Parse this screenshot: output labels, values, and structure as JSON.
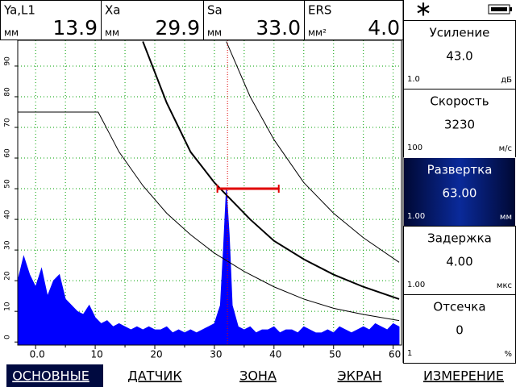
{
  "readouts": [
    {
      "label": "Ya,L1",
      "unit": "мм",
      "value": "13.9"
    },
    {
      "label": "Xa",
      "unit": "мм",
      "value": "29.9"
    },
    {
      "label": "Sa",
      "unit": "мм",
      "value": "33.0"
    },
    {
      "label": "ERS",
      "unit": "мм²",
      "value": "4.0"
    }
  ],
  "params": [
    {
      "name": "Усиление",
      "value": "43.0",
      "min": "1.0",
      "unit": "дБ",
      "selected": false
    },
    {
      "name": "Скорость",
      "value": "3230",
      "min": "100",
      "unit": "м/с",
      "selected": false
    },
    {
      "name": "Развертка",
      "value": "63.00",
      "min": "1.00",
      "unit": "мм",
      "selected": true
    },
    {
      "name": "Задержка",
      "value": "4.00",
      "min": "1.00",
      "unit": "мкс",
      "selected": false
    },
    {
      "name": "Отсечка",
      "value": "0",
      "min": "1",
      "unit": "%",
      "selected": false
    }
  ],
  "tabs": [
    {
      "label": "ОСНОВНЫЕ",
      "selected": true
    },
    {
      "label": "ДАТЧИК",
      "selected": false
    },
    {
      "label": "ЗОНА",
      "selected": false
    },
    {
      "label": "ЭКРАН",
      "selected": false
    },
    {
      "label": "ИЗМЕРЕНИЕ",
      "selected": false
    }
  ],
  "chart_data": {
    "type": "ascan",
    "xlim": [
      -3,
      61.4
    ],
    "ylim": [
      -1,
      98.4
    ],
    "xticks": [
      {
        "value": 0,
        "label": "0.0"
      },
      10,
      20,
      30,
      40,
      50,
      60
    ],
    "x_minor": [
      5,
      15,
      25,
      35,
      45,
      55
    ],
    "yticks": [
      0,
      10,
      20,
      30,
      40,
      50,
      60,
      70,
      80,
      90
    ],
    "grid": true,
    "grid_color": "#00a000",
    "signal": {
      "color": "#0000ff",
      "x": [
        -3,
        -2,
        -1,
        0,
        1,
        2,
        3,
        4,
        5,
        6,
        7,
        8,
        9,
        10,
        11,
        12,
        13,
        14,
        15,
        16,
        17,
        18,
        19,
        20,
        21,
        22,
        23,
        24,
        25,
        26,
        27,
        28,
        29,
        30,
        31,
        31.5,
        32,
        32.5,
        33,
        34,
        35,
        36,
        37,
        38,
        39,
        40,
        41,
        42,
        43,
        44,
        45,
        46,
        47,
        48,
        49,
        50,
        51,
        52,
        53,
        54,
        55,
        56,
        57,
        58,
        59,
        60,
        61
      ],
      "values": [
        20,
        28,
        22,
        18,
        24,
        15,
        20,
        22,
        14,
        12,
        10,
        9,
        12,
        8,
        6,
        7,
        5,
        6,
        5,
        4,
        5,
        4,
        5,
        4,
        4,
        5,
        3,
        4,
        3,
        4,
        3,
        4,
        5,
        6,
        12,
        30,
        50,
        35,
        12,
        5,
        4,
        5,
        3,
        4,
        4,
        5,
        3,
        4,
        4,
        3,
        5,
        4,
        3,
        3,
        4,
        3,
        5,
        4,
        3,
        4,
        5,
        4,
        6,
        5,
        4,
        6,
        5
      ]
    },
    "curves": [
      {
        "color": "#000000",
        "width": 2,
        "x": [
          18,
          22,
          26,
          30,
          32,
          36,
          40,
          45,
          50,
          55,
          61
        ],
        "values": [
          98,
          78,
          62,
          52,
          48,
          40,
          33,
          27,
          22,
          18,
          14
        ]
      },
      {
        "color": "#000000",
        "width": 1,
        "x": [
          32,
          36,
          40,
          45,
          50,
          55,
          61
        ],
        "values": [
          98,
          80,
          66,
          52,
          42,
          34,
          26
        ]
      },
      {
        "color": "#000000",
        "width": 1,
        "x": [
          -3,
          10.5,
          14,
          18,
          22,
          26,
          30,
          35,
          40,
          45,
          50,
          55,
          61
        ],
        "values": [
          75,
          75,
          62,
          51,
          42,
          35,
          29,
          23,
          18,
          14,
          11,
          9,
          7
        ]
      }
    ],
    "gate": {
      "start": 30.5,
      "end": 40.8,
      "level": 50,
      "color": "#e00000"
    },
    "cursor": 32.2
  }
}
